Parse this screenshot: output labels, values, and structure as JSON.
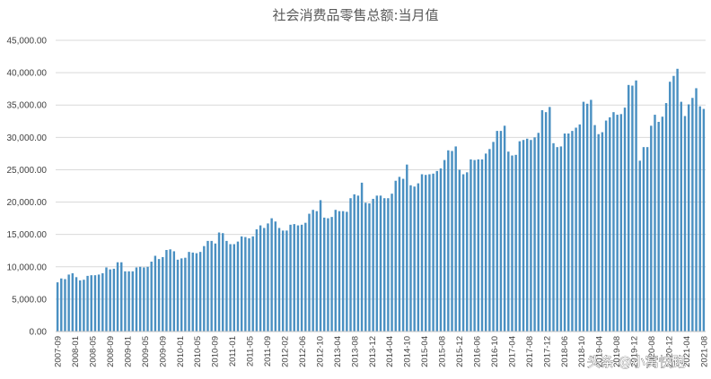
{
  "chart_data": {
    "type": "bar",
    "title": "社会消费品零售总额:当月值",
    "xlabel": "",
    "ylabel": "",
    "ylim": [
      0,
      45000
    ],
    "yticks": [
      0,
      5000,
      10000,
      15000,
      20000,
      25000,
      30000,
      35000,
      40000,
      45000
    ],
    "ytick_labels": [
      "0.00",
      "5,000.00",
      "10,000.00",
      "15,000.00",
      "20,000.00",
      "25,000.00",
      "30,000.00",
      "35,000.00",
      "40,000.00",
      "45,000.00"
    ],
    "xtick_labels": [
      "2007-09",
      "2008-01",
      "2008-05",
      "2008-09",
      "2009-01",
      "2009-05",
      "2009-09",
      "2010-01",
      "2010-05",
      "2010-09",
      "2011-01",
      "2011-05",
      "2011-09",
      "2012-02",
      "2012-06",
      "2012-10",
      "2013-04",
      "2013-08",
      "2013-12",
      "2014-04",
      "2014-10",
      "2015-04",
      "2015-08",
      "2015-12",
      "2016-06",
      "2016-10",
      "2017-04",
      "2017-08",
      "2017-12",
      "2018-06",
      "2018-10",
      "2019-04",
      "2019-08",
      "2019-12",
      "2020-08",
      "2020-12",
      "2021-04",
      "2021-08"
    ],
    "grid": true,
    "legend": "none",
    "bar_color": "#4a90c2",
    "grid_color": "#d9d9d9",
    "values": [
      7600,
      8200,
      8100,
      8800,
      9000,
      8400,
      7900,
      8000,
      8600,
      8700,
      8700,
      8800,
      9000,
      9900,
      9600,
      9700,
      10700,
      10700,
      9300,
      9300,
      9300,
      9900,
      10000,
      9900,
      10000,
      10800,
      11700,
      11200,
      11500,
      12600,
      12700,
      12400,
      11100,
      11300,
      11400,
      12300,
      12200,
      12100,
      12300,
      13200,
      14000,
      14000,
      13600,
      15300,
      15200,
      14000,
      13500,
      13500,
      13900,
      14700,
      14600,
      14400,
      14700,
      15800,
      16400,
      16000,
      16700,
      17500,
      17000,
      16000,
      15600,
      15600,
      16500,
      16600,
      16400,
      16500,
      16800,
      18200,
      18800,
      18600,
      20300,
      17600,
      17500,
      17700,
      18800,
      18600,
      18600,
      18500,
      20600,
      21200,
      21000,
      23000,
      19900,
      19800,
      20500,
      21000,
      21000,
      20600,
      20600,
      21300,
      23300,
      23900,
      23600,
      25800,
      22600,
      22400,
      22900,
      24300,
      24200,
      24300,
      24400,
      24800,
      25200,
      26500,
      28000,
      27900,
      28600,
      25000,
      24300,
      24600,
      26600,
      26500,
      26600,
      26600,
      27500,
      28200,
      29300,
      31000,
      31000,
      31800,
      27800,
      27200,
      27300,
      29400,
      29600,
      29800,
      29600,
      30000,
      30700,
      34200,
      33900,
      34700,
      29100,
      28500,
      28600,
      30600,
      30600,
      31000,
      31500,
      32000,
      35500,
      35200,
      35800,
      31900,
      30500,
      30800,
      32600,
      33100,
      33900,
      33500,
      33600,
      34600,
      38100,
      38000,
      38800,
      26400,
      28500,
      28500,
      31800,
      33500,
      32400,
      33200,
      35300,
      38600,
      39500,
      40600,
      35500,
      33300,
      35100,
      36100,
      37600,
      34800,
      34400
    ]
  },
  "watermark": "头条 @小窝快跑"
}
